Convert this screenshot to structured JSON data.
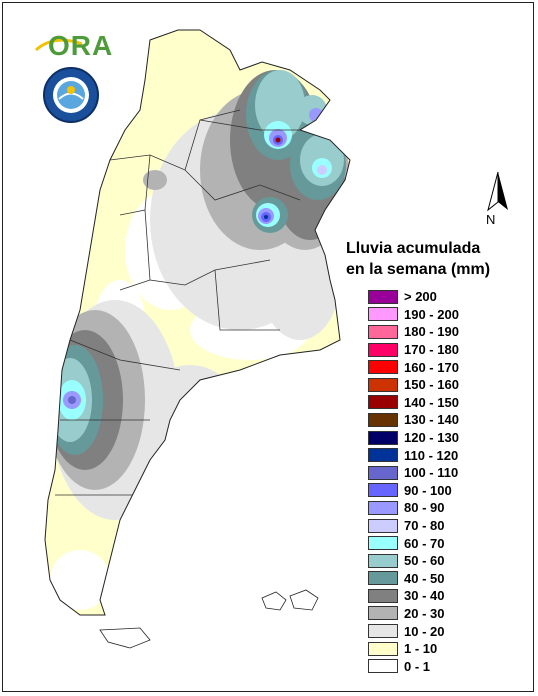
{
  "header": {
    "logo_text": "ORA",
    "seal_text": "SERVICIO METEOROLOGICO NACIONAL ARGENTINA"
  },
  "compass": {
    "label": "N"
  },
  "legend": {
    "title_line1": "Lluvia acumulada",
    "title_line2": "en la semana (mm)",
    "classes": [
      {
        "label": "> 200",
        "color": "#990099"
      },
      {
        "label": "190 - 200",
        "color": "#ff99ff"
      },
      {
        "label": "180 - 190",
        "color": "#ff6699"
      },
      {
        "label": "170 - 180",
        "color": "#ff0066"
      },
      {
        "label": "160 - 170",
        "color": "#ff0000"
      },
      {
        "label": "150 - 160",
        "color": "#cc3300"
      },
      {
        "label": "140 - 150",
        "color": "#990000"
      },
      {
        "label": "130 - 140",
        "color": "#663300"
      },
      {
        "label": "120 - 130",
        "color": "#000066"
      },
      {
        "label": "110 - 120",
        "color": "#003399"
      },
      {
        "label": "100 - 110",
        "color": "#6666cc"
      },
      {
        "label": "90 - 100",
        "color": "#6666ff"
      },
      {
        "label": "80 - 90",
        "color": "#9999ff"
      },
      {
        "label": "70 - 80",
        "color": "#ccccff"
      },
      {
        "label": "60 - 70",
        "color": "#99ffff"
      },
      {
        "label": "50 - 60",
        "color": "#99cccc"
      },
      {
        "label": "40 - 50",
        "color": "#669999"
      },
      {
        "label": "30 - 40",
        "color": "#808080"
      },
      {
        "label": "20 - 30",
        "color": "#b3b3b3"
      },
      {
        "label": "10 - 20",
        "color": "#e6e6e6"
      },
      {
        "label": "1 - 10",
        "color": "#ffffcc"
      },
      {
        "label": "0 - 1",
        "color": "#ffffff"
      }
    ]
  }
}
